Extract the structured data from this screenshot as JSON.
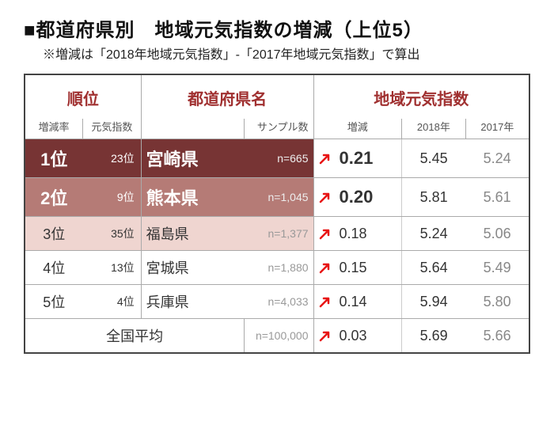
{
  "title": "■都道府県別　地域元気指数の増減（上位5）",
  "subtitle": "※増減は「2018年地域元気指数」-「2017年地域元気指数」で算出",
  "headers": {
    "rank": "順位",
    "pref": "都道府県名",
    "index": "地域元気指数",
    "subRankRate": "増減率",
    "subRankIdx": "元気指数",
    "subSample": "サンプル数",
    "subChange": "増減",
    "subY2018": "2018年",
    "subY2017": "2017年"
  },
  "rows": [
    {
      "rank": "1位",
      "idxRank": "23位",
      "pref": "宮崎県",
      "n": "n=665",
      "change": "0.21",
      "y2018": "5.45",
      "y2017": "5.24",
      "bg": "#773434",
      "fg": "#ffffff",
      "big": true
    },
    {
      "rank": "2位",
      "idxRank": "9位",
      "pref": "熊本県",
      "n": "n=1,045",
      "change": "0.20",
      "y2018": "5.81",
      "y2017": "5.61",
      "bg": "#b57b76",
      "fg": "#ffffff",
      "big": true
    },
    {
      "rank": "3位",
      "idxRank": "35位",
      "pref": "福島県",
      "n": "n=1,377",
      "change": "0.18",
      "y2018": "5.24",
      "y2017": "5.06",
      "bg": "#efd5d0",
      "fg": "#333333",
      "big": false
    },
    {
      "rank": "4位",
      "idxRank": "13位",
      "pref": "宮城県",
      "n": "n=1,880",
      "change": "0.15",
      "y2018": "5.64",
      "y2017": "5.49",
      "bg": "#ffffff",
      "fg": "#333333",
      "big": false
    },
    {
      "rank": "5位",
      "idxRank": "4位",
      "pref": "兵庫県",
      "n": "n=4,033",
      "change": "0.14",
      "y2018": "5.94",
      "y2017": "5.80",
      "bg": "#ffffff",
      "fg": "#333333",
      "big": false
    }
  ],
  "average": {
    "label": "全国平均",
    "n": "n=100,000",
    "change": "0.03",
    "y2018": "5.69",
    "y2017": "5.66"
  },
  "style": {
    "arrowColor": "#e81414",
    "titleColor": "#111111",
    "headerRed": "#a03030",
    "borderColor": "#444444",
    "y2017Color": "#888888"
  }
}
